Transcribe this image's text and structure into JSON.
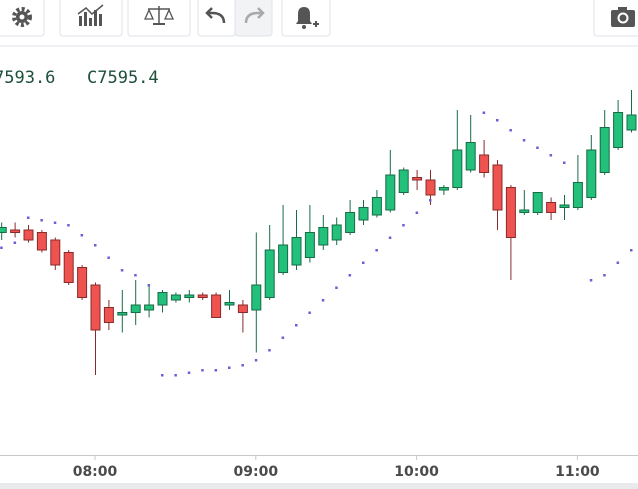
{
  "chart_data": {
    "type": "candlestick",
    "ohlc_labels": [
      "7593.6",
      "C7595.4"
    ],
    "categories": [
      null,
      null,
      null,
      null,
      null,
      null,
      null,
      "08:00",
      null,
      null,
      null,
      null,
      null,
      null,
      null,
      null,
      null,
      null,
      null,
      "09:00",
      null,
      null,
      null,
      null,
      null,
      null,
      null,
      null,
      null,
      null,
      null,
      "10:00",
      null,
      null,
      null,
      null,
      null,
      null,
      null,
      null,
      null,
      null,
      null,
      "11:00",
      null,
      null,
      null,
      null
    ],
    "open": [
      7569,
      7570,
      7570,
      7569,
      7566,
      7561,
      7555,
      7548,
      7539,
      7536,
      7537,
      7538,
      7540,
      7542,
      7543,
      7544,
      7544,
      7540,
      7540,
      7538,
      7543,
      7553,
      7556,
      7559,
      7564,
      7566,
      7569,
      7574,
      7576,
      7578,
      7585,
      7591,
      7590,
      7586,
      7587,
      7594,
      7600,
      7596,
      7587,
      7577,
      7577,
      7581,
      7579,
      7579,
      7583,
      7593,
      7603,
      7610
    ],
    "high": [
      7573,
      7573,
      7572,
      7570,
      7567,
      7562,
      7556,
      7549,
      7542,
      7546,
      7550,
      7548,
      7546,
      7545,
      7546,
      7545,
      7545,
      7546,
      7542,
      7569,
      7572,
      7580,
      7578,
      7580,
      7576,
      7575,
      7582,
      7582,
      7586,
      7602,
      7595,
      7594,
      7594,
      7588,
      7618,
      7616,
      7606,
      7598,
      7588,
      7586,
      7585,
      7583,
      7584,
      7600,
      7608,
      7618,
      7622,
      7626
    ],
    "low": [
      7566,
      7567,
      7565,
      7561,
      7554,
      7548,
      7542,
      7512,
      7530,
      7529,
      7532,
      7535,
      7537,
      7541,
      7541,
      7542,
      7535,
      7538,
      7529,
      7521,
      7542,
      7552,
      7554,
      7557,
      7562,
      7564,
      7568,
      7572,
      7575,
      7577,
      7584,
      7586,
      7580,
      7584,
      7586,
      7593,
      7591,
      7570,
      7550,
      7576,
      7576,
      7574,
      7574,
      7578,
      7582,
      7592,
      7602,
      7609
    ],
    "close": [
      7571,
      7569,
      7566,
      7562,
      7556,
      7549,
      7543,
      7530,
      7533,
      7537,
      7540,
      7540,
      7545,
      7544,
      7544,
      7543,
      7535,
      7541,
      7537,
      7548,
      7562,
      7564,
      7567,
      7569,
      7571,
      7572,
      7577,
      7579,
      7583,
      7592,
      7594,
      7590,
      7584,
      7587,
      7602,
      7605,
      7593,
      7578,
      7567,
      7578,
      7585,
      7577,
      7580,
      7589,
      7602,
      7611,
      7617,
      7616
    ],
    "sar": [
      7563,
      7565,
      7575,
      7574,
      7573,
      7572,
      7568,
      7564,
      7559,
      7554,
      7552,
      7548,
      7512,
      7512,
      7513,
      7514,
      7514,
      7515,
      7516,
      7518,
      7522,
      7527,
      7532,
      7537,
      7542,
      7547,
      7552,
      7557,
      7562,
      7567,
      7572,
      7577,
      7582,
      null,
      null,
      null,
      7617,
      7614,
      7610,
      7606,
      7603,
      7600,
      7597,
      null,
      7550,
      7552,
      7557,
      7562
    ],
    "up_color": "#22c07a",
    "down_color": "#ef5350",
    "sar_color": "#6b5fd6",
    "ylim": [
      7480,
      7630
    ]
  }
}
